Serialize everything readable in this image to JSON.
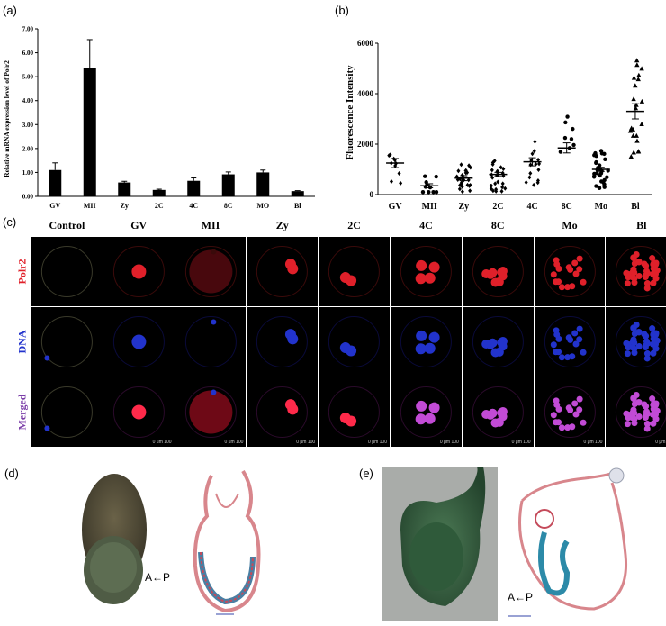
{
  "panels": {
    "a": "(a)",
    "b": "(b)",
    "c": "(c)",
    "d": "(d)",
    "e": "(e)"
  },
  "chart_data": [
    {
      "type": "bar",
      "categories": [
        "GV",
        "MII",
        "Zy",
        "2C",
        "4C",
        "8C",
        "MO",
        "Bl"
      ],
      "values": [
        1.1,
        5.35,
        0.58,
        0.27,
        0.65,
        0.92,
        1.0,
        0.22
      ],
      "errors": [
        0.3,
        1.2,
        0.05,
        0.03,
        0.12,
        0.1,
        0.1,
        0.02
      ],
      "ylabel": "Relative mRNA expression level of Polr2",
      "yticks": [
        "0.00",
        "1.00",
        "2.00",
        "3.00",
        "4.00",
        "5.00",
        "6.00",
        "7.00"
      ],
      "ylim": [
        0,
        7
      ]
    },
    {
      "type": "scatter",
      "categories": [
        "GV",
        "MII",
        "Zy",
        "2C",
        "4C",
        "8C",
        "Mo",
        "Bl"
      ],
      "means": [
        1250,
        350,
        650,
        800,
        1300,
        1850,
        1000,
        3300
      ],
      "sems": [
        180,
        80,
        100,
        80,
        160,
        200,
        80,
        300
      ],
      "ylabel": "Fluorescence Intensity",
      "yticks": [
        "0",
        "2000",
        "4000",
        "6000"
      ],
      "ylim": [
        0,
        6000
      ]
    }
  ],
  "grid": {
    "columns": [
      "Control",
      "GV",
      "MII",
      "Zy",
      "2C",
      "4C",
      "8C",
      "Mo",
      "Bl"
    ],
    "rows": [
      {
        "label": "Polr2",
        "color": "#e0202a"
      },
      {
        "label": "DNA",
        "color": "#2233cc"
      },
      {
        "label": "Merged",
        "color": "#7b3ea8"
      }
    ],
    "scalebar": "0      μm    100"
  },
  "orientation_d": "A←P",
  "orientation_e": "A←P"
}
